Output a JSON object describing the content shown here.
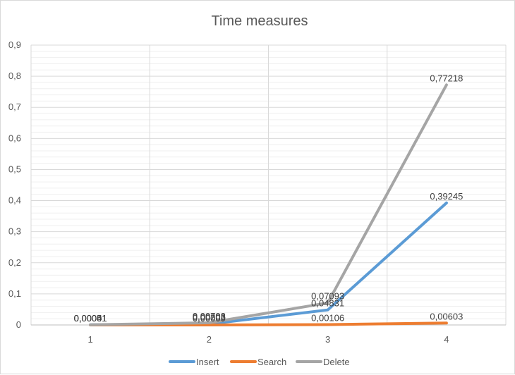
{
  "chart_data": {
    "type": "line",
    "title": "Time measures",
    "xlabel": "",
    "ylabel": "",
    "categories": [
      "1",
      "2",
      "3",
      "4"
    ],
    "ylim": [
      0,
      0.9
    ],
    "y_step": 0.1,
    "y_tick_labels": [
      "0",
      "0,1",
      "0,2",
      "0,3",
      "0,4",
      "0,5",
      "0,6",
      "0,7",
      "0,8",
      "0,9"
    ],
    "grid": true,
    "legend": "bottom",
    "series": [
      {
        "name": "Insert",
        "color": "#5B9BD5",
        "values": [
          0.00041,
          0.00303,
          0.04831,
          0.39245
        ],
        "labels": [
          "0,00041",
          "0,00303",
          "0,04831",
          "0,39245"
        ]
      },
      {
        "name": "Search",
        "color": "#ED7D31",
        "values": [
          1e-05,
          9e-05,
          0.00106,
          0.00603
        ],
        "labels": [
          "0,00001",
          "0,00009",
          "0,00106",
          "0,00603"
        ]
      },
      {
        "name": "Delete",
        "color": "#A5A5A5",
        "values": [
          0.00051,
          0.00703,
          0.07093,
          0.77218
        ],
        "labels": [
          "0,00051",
          "0,00703",
          "0,07093",
          "0,77218"
        ]
      }
    ]
  }
}
